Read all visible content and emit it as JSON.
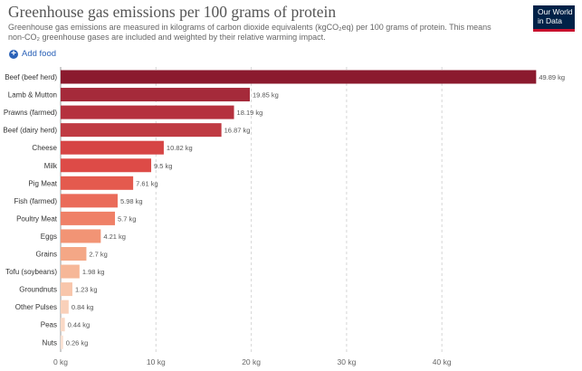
{
  "header": {
    "title": "Greenhouse gas emissions per 100 grams of protein",
    "subtitle": "Greenhouse gas emissions are measured in kilograms of carbon dioxide equivalents (kgCO₂eq) per 100 grams of protein. This means non-CO₂ greenhouse gases are included and weighted by their relative warming impact.",
    "add_food_label": "Add food",
    "logo_line1": "Our World",
    "logo_line2": "in Data"
  },
  "colors": {
    "logo_bg": "#002147",
    "logo_accent": "#c8102e",
    "link": "#2b62b8",
    "bars": [
      "#8b1a2e",
      "#a52a3a",
      "#b5313e",
      "#bf3a42",
      "#d64545",
      "#dd4b47",
      "#e45a4e",
      "#ea6b5a",
      "#ef8067",
      "#f29475",
      "#f4a786",
      "#f6b798",
      "#f8c6ab",
      "#f9d0b9",
      "#fad9c6",
      "#fbe1d2"
    ]
  },
  "chart_data": {
    "type": "bar",
    "orientation": "horizontal",
    "title": "Greenhouse gas emissions per 100 grams of protein",
    "categories": [
      "Beef (beef herd)",
      "Lamb & Mutton",
      "Prawns (farmed)",
      "Beef (dairy herd)",
      "Cheese",
      "Milk",
      "Pig Meat",
      "Fish (farmed)",
      "Poultry Meat",
      "Eggs",
      "Grains",
      "Tofu (soybeans)",
      "Groundnuts",
      "Other Pulses",
      "Peas",
      "Nuts"
    ],
    "values": [
      49.89,
      19.85,
      18.19,
      16.87,
      10.82,
      9.5,
      7.61,
      5.98,
      5.7,
      4.21,
      2.7,
      1.98,
      1.23,
      0.84,
      0.44,
      0.26
    ],
    "value_labels": [
      "49.89 kg",
      "19.85 kg",
      "18.19 kg",
      "16.87 kg",
      "10.82 kg",
      "9.5 kg",
      "7.61 kg",
      "5.98 kg",
      "5.7 kg",
      "4.21 kg",
      "2.7 kg",
      "1.98 kg",
      "1.23 kg",
      "0.84 kg",
      "0.44 kg",
      "0.26 kg"
    ],
    "xlim": [
      0,
      50
    ],
    "xticks": [
      0,
      10,
      20,
      30,
      40
    ],
    "xtick_labels": [
      "0 kg",
      "10 kg",
      "20 kg",
      "30 kg",
      "40 kg"
    ],
    "grid": true
  }
}
